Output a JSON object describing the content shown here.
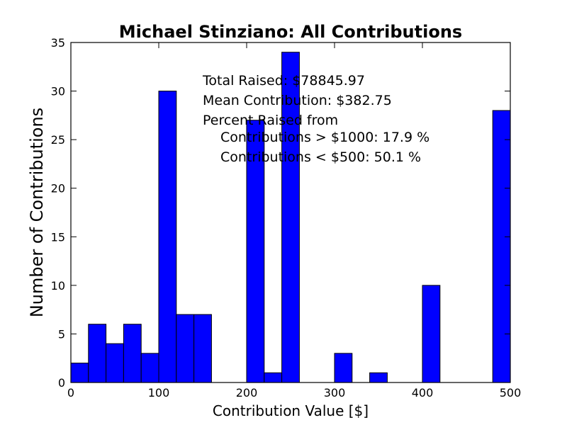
{
  "chart_data": {
    "type": "bar",
    "title": "Michael Stinziano: All Contributions",
    "xlabel": "Contribution Value [$]",
    "ylabel": "Number of Contributions",
    "xlim": [
      0,
      500
    ],
    "ylim": [
      0,
      35
    ],
    "xticks": [
      "0",
      "100",
      "200",
      "300",
      "400",
      "500"
    ],
    "yticks": [
      "0",
      "5",
      "10",
      "15",
      "20",
      "25",
      "30",
      "35"
    ],
    "bin_width": 20,
    "bins": [
      {
        "x0": 0,
        "x1": 20,
        "count": 2
      },
      {
        "x0": 20,
        "x1": 40,
        "count": 6
      },
      {
        "x0": 40,
        "x1": 60,
        "count": 4
      },
      {
        "x0": 60,
        "x1": 80,
        "count": 6
      },
      {
        "x0": 80,
        "x1": 100,
        "count": 3
      },
      {
        "x0": 100,
        "x1": 120,
        "count": 30
      },
      {
        "x0": 120,
        "x1": 140,
        "count": 7
      },
      {
        "x0": 140,
        "x1": 160,
        "count": 7
      },
      {
        "x0": 160,
        "x1": 180,
        "count": 0
      },
      {
        "x0": 180,
        "x1": 200,
        "count": 0
      },
      {
        "x0": 200,
        "x1": 220,
        "count": 27
      },
      {
        "x0": 220,
        "x1": 240,
        "count": 1
      },
      {
        "x0": 240,
        "x1": 260,
        "count": 34
      },
      {
        "x0": 260,
        "x1": 280,
        "count": 0
      },
      {
        "x0": 280,
        "x1": 300,
        "count": 0
      },
      {
        "x0": 300,
        "x1": 320,
        "count": 3
      },
      {
        "x0": 320,
        "x1": 340,
        "count": 0
      },
      {
        "x0": 340,
        "x1": 360,
        "count": 1
      },
      {
        "x0": 360,
        "x1": 380,
        "count": 0
      },
      {
        "x0": 380,
        "x1": 400,
        "count": 0
      },
      {
        "x0": 400,
        "x1": 420,
        "count": 10
      },
      {
        "x0": 420,
        "x1": 440,
        "count": 0
      },
      {
        "x0": 440,
        "x1": 460,
        "count": 0
      },
      {
        "x0": 460,
        "x1": 480,
        "count": 0
      },
      {
        "x0": 480,
        "x1": 500,
        "count": 28
      }
    ],
    "bar_color": "#0000ff",
    "annotations": [
      "Total Raised: $78845.97",
      "Mean Contribution: $382.75",
      "Percent Raised from",
      "Contributions > $1000: 17.9 %",
      "Contributions < $500: 50.1 %"
    ],
    "grid": false,
    "legend": "none"
  }
}
